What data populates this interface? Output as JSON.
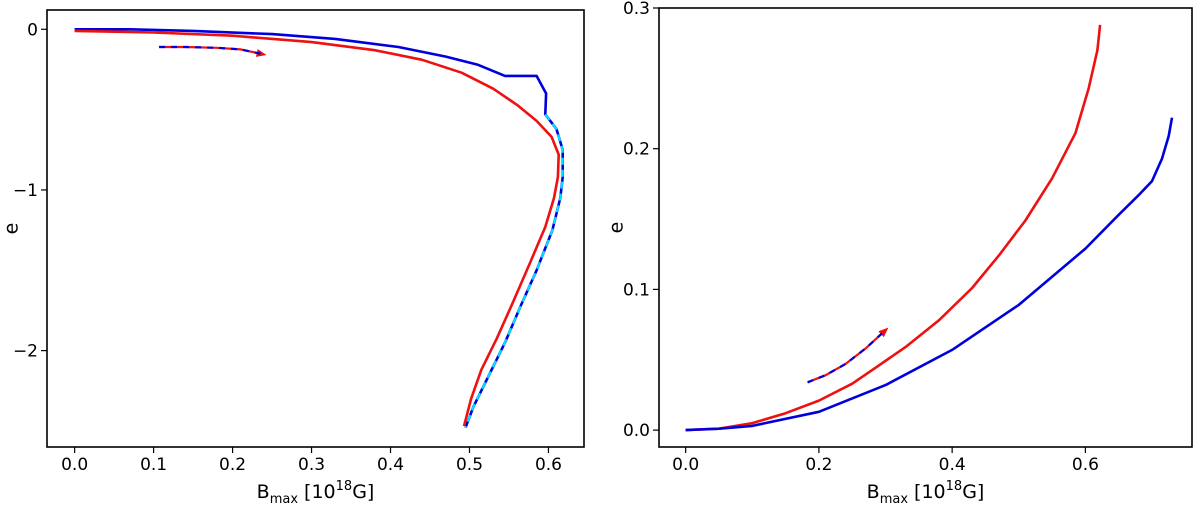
{
  "chart_data": [
    {
      "type": "line",
      "title": "",
      "xlabel": {
        "main": "B",
        "sub": "max",
        "rest": " [10",
        "sup": "18",
        "tail": "G]"
      },
      "ylabel": "e",
      "xlim": [
        -0.035,
        0.645
      ],
      "ylim": [
        -2.6,
        0.12
      ],
      "xticks": [
        0.0,
        0.1,
        0.2,
        0.3,
        0.4,
        0.5,
        0.6
      ],
      "xtick_labels": [
        "0.0",
        "0.1",
        "0.2",
        "0.3",
        "0.4",
        "0.5",
        "0.6"
      ],
      "yticks": [
        0,
        -1,
        -2
      ],
      "ytick_labels": [
        "0",
        "−1",
        "−2"
      ],
      "series": [
        {
          "color": "#0000dd",
          "style": "solid",
          "points": [
            [
              0.0,
              0.0
            ],
            [
              0.07,
              0.0
            ],
            [
              0.15,
              -0.01
            ],
            [
              0.25,
              -0.03
            ],
            [
              0.33,
              -0.06
            ],
            [
              0.41,
              -0.11
            ],
            [
              0.47,
              -0.17
            ],
            [
              0.51,
              -0.22
            ],
            [
              0.545,
              -0.29
            ],
            [
              0.585,
              -0.29
            ],
            [
              0.597,
              -0.4
            ],
            [
              0.596,
              -0.53
            ],
            [
              0.61,
              -0.62
            ],
            [
              0.618,
              -0.75
            ],
            [
              0.618,
              -0.92
            ],
            [
              0.615,
              -1.05
            ],
            [
              0.605,
              -1.25
            ],
            [
              0.585,
              -1.5
            ],
            [
              0.565,
              -1.72
            ],
            [
              0.545,
              -1.95
            ],
            [
              0.525,
              -2.15
            ],
            [
              0.505,
              -2.35
            ],
            [
              0.495,
              -2.48
            ]
          ]
        },
        {
          "color": "#ee1111",
          "style": "solid",
          "points": [
            [
              0.0,
              -0.01
            ],
            [
              0.1,
              -0.02
            ],
            [
              0.2,
              -0.04
            ],
            [
              0.3,
              -0.08
            ],
            [
              0.38,
              -0.13
            ],
            [
              0.44,
              -0.19
            ],
            [
              0.49,
              -0.27
            ],
            [
              0.53,
              -0.37
            ],
            [
              0.56,
              -0.47
            ],
            [
              0.585,
              -0.57
            ],
            [
              0.604,
              -0.67
            ],
            [
              0.613,
              -0.78
            ],
            [
              0.612,
              -0.92
            ],
            [
              0.607,
              -1.05
            ],
            [
              0.596,
              -1.23
            ],
            [
              0.577,
              -1.45
            ],
            [
              0.555,
              -1.7
            ],
            [
              0.535,
              -1.92
            ],
            [
              0.515,
              -2.12
            ],
            [
              0.502,
              -2.3
            ],
            [
              0.493,
              -2.47
            ]
          ]
        },
        {
          "color": "#00e0ff",
          "style": "dashed",
          "points": [
            [
              0.596,
              -0.53
            ],
            [
              0.61,
              -0.62
            ],
            [
              0.618,
              -0.75
            ],
            [
              0.618,
              -0.92
            ],
            [
              0.615,
              -1.05
            ],
            [
              0.605,
              -1.25
            ],
            [
              0.585,
              -1.5
            ],
            [
              0.565,
              -1.72
            ],
            [
              0.545,
              -1.95
            ],
            [
              0.525,
              -2.15
            ],
            [
              0.505,
              -2.35
            ],
            [
              0.495,
              -2.48
            ]
          ]
        }
      ],
      "arrow": {
        "color": "#ee1111",
        "dash_colors": [
          "#ee1111",
          "#0000dd"
        ],
        "points": [
          [
            0.107,
            -0.11
          ],
          [
            0.14,
            -0.11
          ],
          [
            0.18,
            -0.115
          ],
          [
            0.21,
            -0.125
          ],
          [
            0.238,
            -0.155
          ]
        ]
      }
    },
    {
      "type": "line",
      "title": "",
      "xlabel": {
        "main": "B",
        "sub": "max",
        "rest": " [10",
        "sup": "18",
        "tail": "G]"
      },
      "ylabel": "e",
      "xlim": [
        -0.04,
        0.76
      ],
      "ylim": [
        -0.012,
        0.3
      ],
      "xticks": [
        0.0,
        0.2,
        0.4,
        0.6
      ],
      "xtick_labels": [
        "0.0",
        "0.2",
        "0.4",
        "0.6"
      ],
      "yticks": [
        0.0,
        0.1,
        0.2,
        0.3
      ],
      "ytick_labels": [
        "0.0",
        "0.1",
        "0.2",
        "0.3"
      ],
      "series": [
        {
          "color": "#ee1111",
          "style": "solid",
          "points": [
            [
              0.0,
              0.0
            ],
            [
              0.05,
              0.001
            ],
            [
              0.1,
              0.005
            ],
            [
              0.15,
              0.012
            ],
            [
              0.2,
              0.021
            ],
            [
              0.25,
              0.033
            ],
            [
              0.29,
              0.046
            ],
            [
              0.33,
              0.059
            ],
            [
              0.38,
              0.078
            ],
            [
              0.43,
              0.101
            ],
            [
              0.47,
              0.124
            ],
            [
              0.51,
              0.149
            ],
            [
              0.55,
              0.179
            ],
            [
              0.585,
              0.211
            ],
            [
              0.605,
              0.243
            ],
            [
              0.618,
              0.27
            ],
            [
              0.622,
              0.288
            ]
          ]
        },
        {
          "color": "#0000dd",
          "style": "solid",
          "points": [
            [
              0.0,
              0.0
            ],
            [
              0.05,
              0.001
            ],
            [
              0.1,
              0.003
            ],
            [
              0.2,
              0.013
            ],
            [
              0.3,
              0.032
            ],
            [
              0.4,
              0.057
            ],
            [
              0.5,
              0.089
            ],
            [
              0.6,
              0.129
            ],
            [
              0.65,
              0.153
            ],
            [
              0.68,
              0.167
            ],
            [
              0.7,
              0.177
            ],
            [
              0.715,
              0.193
            ],
            [
              0.725,
              0.209
            ],
            [
              0.73,
              0.222
            ]
          ]
        }
      ],
      "arrow": {
        "color": "#ee1111",
        "dash_colors": [
          "#ee1111",
          "#0000dd"
        ],
        "points": [
          [
            0.183,
            0.034
          ],
          [
            0.21,
            0.039
          ],
          [
            0.24,
            0.047
          ],
          [
            0.27,
            0.058
          ],
          [
            0.3,
            0.071
          ]
        ]
      }
    }
  ]
}
